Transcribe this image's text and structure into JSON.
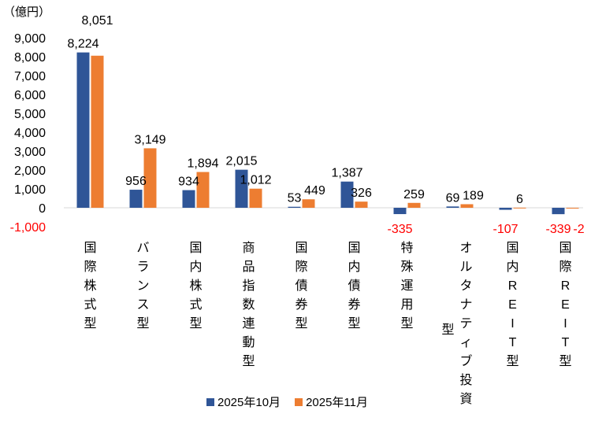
{
  "chart_data": {
    "type": "bar",
    "unit_label": "（億円）",
    "categories": [
      "国際株式型",
      "バランス型",
      "国内株式型",
      "商品指数連動型",
      "国際債券型",
      "国内債券型",
      "特殊運用型",
      "オルタナティブ投資型",
      "国内REIT型",
      "国際REIT型"
    ],
    "series": [
      {
        "name": "2025年10月",
        "color": "#2F5597",
        "values": [
          8224,
          956,
          934,
          2015,
          53,
          1387,
          -335,
          69,
          -107,
          -339
        ],
        "labels": [
          "8,224",
          "956",
          "934",
          "2,015",
          "53",
          "1,387",
          "-335",
          "69",
          "-107",
          "-339"
        ]
      },
      {
        "name": "2025年11月",
        "color": "#ED7D31",
        "values": [
          8051,
          3149,
          1894,
          1012,
          449,
          326,
          259,
          189,
          6,
          -2
        ],
        "labels": [
          "8,051",
          "3,149",
          "1,894",
          "1,012",
          "449",
          "326",
          "259",
          "189",
          "6",
          "-2"
        ]
      }
    ],
    "yticks": [
      "9,000",
      "8,000",
      "7,000",
      "6,000",
      "5,000",
      "4,000",
      "3,000",
      "2,000",
      "1,000",
      "0",
      "-1,000"
    ],
    "ylim": [
      -1000,
      9000
    ],
    "negative_label_color": "#FF0000",
    "legend_position": "bottom",
    "grid": false
  }
}
